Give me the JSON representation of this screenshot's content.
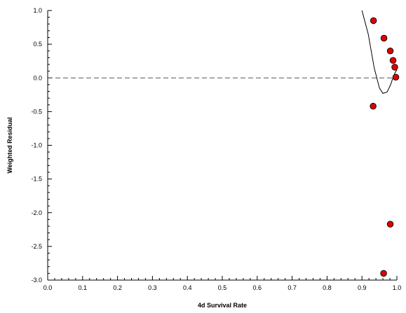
{
  "chart_data": {
    "type": "scatter",
    "title": "",
    "xlabel": "4d Survival Rate",
    "ylabel": "Weighted Residual",
    "xlim": [
      0.0,
      1.0
    ],
    "ylim": [
      -3.0,
      1.0
    ],
    "xticks": [
      "0.0",
      "0.1",
      "0.2",
      "0.3",
      "0.4",
      "0.5",
      "0.6",
      "0.7",
      "0.8",
      "0.9",
      "1.0"
    ],
    "yticks": [
      "1.0",
      "0.5",
      "0.0",
      "-0.5",
      "-1.0",
      "-1.5",
      "-2.0",
      "-2.5",
      "-3.0"
    ],
    "reference_line": {
      "y": 0.0,
      "style": "dashed"
    },
    "series": [
      {
        "kind": "points",
        "marker_color": "#e00000",
        "points": [
          {
            "x": 0.933,
            "y": 0.85
          },
          {
            "x": 0.963,
            "y": 0.59
          },
          {
            "x": 0.981,
            "y": 0.4
          },
          {
            "x": 0.989,
            "y": 0.26
          },
          {
            "x": 0.994,
            "y": 0.16
          },
          {
            "x": 0.997,
            "y": 0.01
          },
          {
            "x": 0.932,
            "y": -0.42
          },
          {
            "x": 0.981,
            "y": -2.17
          },
          {
            "x": 0.962,
            "y": -2.9
          }
        ]
      },
      {
        "kind": "line",
        "color": "#000000",
        "points": [
          {
            "x": 0.9,
            "y": 1.0
          },
          {
            "x": 0.918,
            "y": 0.65
          },
          {
            "x": 0.935,
            "y": 0.15
          },
          {
            "x": 0.95,
            "y": -0.15
          },
          {
            "x": 0.96,
            "y": -0.23
          },
          {
            "x": 0.972,
            "y": -0.21
          },
          {
            "x": 0.982,
            "y": -0.1
          },
          {
            "x": 0.99,
            "y": 0.02
          },
          {
            "x": 0.996,
            "y": 0.09
          },
          {
            "x": 1.0,
            "y": 0.12
          }
        ]
      }
    ],
    "grid": false,
    "legend": "none"
  }
}
